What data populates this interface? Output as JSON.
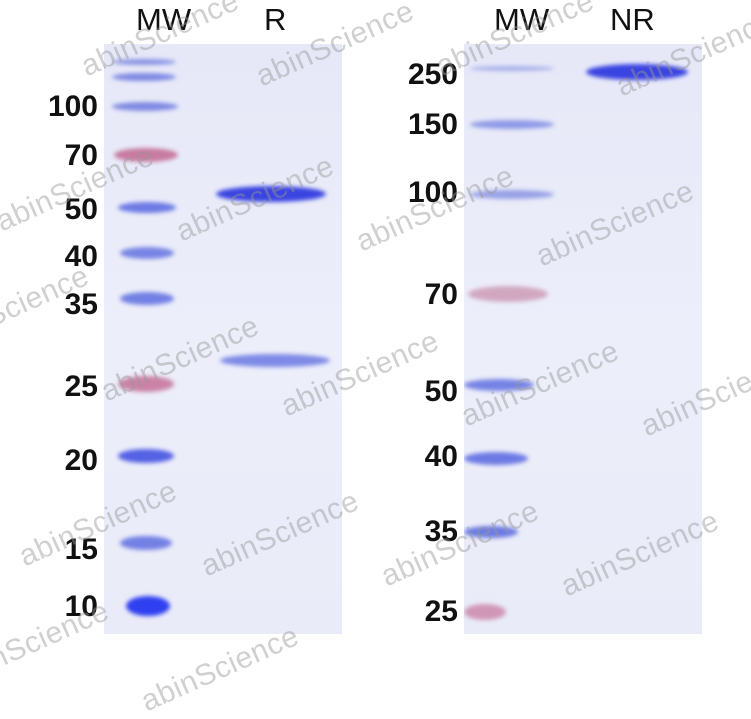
{
  "left_gel": {
    "lanes": [
      "MW",
      "R"
    ],
    "markers": [
      "100",
      "70",
      "50",
      "40",
      "35",
      "25",
      "20",
      "15",
      "10"
    ]
  },
  "right_gel": {
    "lanes": [
      "MW",
      "NR"
    ],
    "markers": [
      "250",
      "150",
      "100",
      "70",
      "50",
      "40",
      "35",
      "25"
    ]
  },
  "watermark": "abinScience",
  "colors": {
    "band_blue": "#3a44e0",
    "band_pink": "#c0608a",
    "gel": "#e8eaf8"
  }
}
